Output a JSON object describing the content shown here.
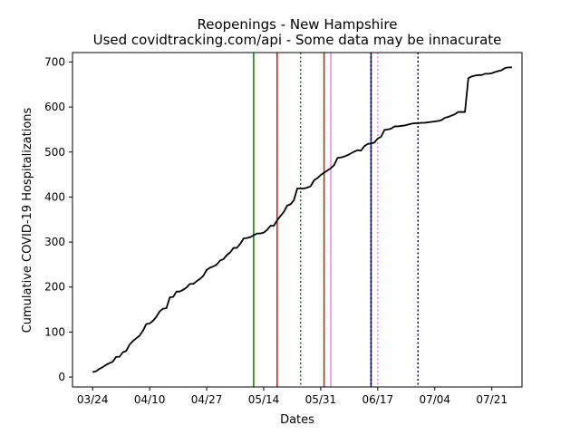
{
  "chart_data": {
    "type": "line",
    "title": "Reopenings - New Hampshire",
    "subtitle": "Used covidtracking.com/api - Some data may be innacurate",
    "xlabel": "Dates",
    "ylabel": "Cumulative COVID-19 Hospitalizations",
    "x_tick_labels": [
      "03/24",
      "04/10",
      "04/27",
      "05/14",
      "05/31",
      "06/17",
      "07/04",
      "07/21"
    ],
    "x_tick_dates": [
      "2020-03-24",
      "2020-04-10",
      "2020-04-27",
      "2020-05-14",
      "2020-05-31",
      "2020-06-17",
      "2020-07-04",
      "2020-07-21"
    ],
    "xlim": [
      "2020-03-18",
      "2020-07-30"
    ],
    "ylim": [
      -22,
      721
    ],
    "y_ticks": [
      0,
      100,
      200,
      300,
      400,
      500,
      600,
      700
    ],
    "grid": false,
    "series": [
      {
        "color": "#000000",
        "points": [
          [
            "2020-03-24",
            11
          ],
          [
            "2020-03-25",
            13
          ],
          [
            "2020-03-26",
            18
          ],
          [
            "2020-03-27",
            22
          ],
          [
            "2020-03-28",
            27
          ],
          [
            "2020-03-29",
            31
          ],
          [
            "2020-03-30",
            34
          ],
          [
            "2020-03-31",
            45
          ],
          [
            "2020-04-01",
            45
          ],
          [
            "2020-04-02",
            55
          ],
          [
            "2020-04-03",
            58
          ],
          [
            "2020-04-04",
            72
          ],
          [
            "2020-04-05",
            80
          ],
          [
            "2020-04-06",
            86
          ],
          [
            "2020-04-07",
            92
          ],
          [
            "2020-04-08",
            103
          ],
          [
            "2020-04-09",
            118
          ],
          [
            "2020-04-10",
            119
          ],
          [
            "2020-04-11",
            125
          ],
          [
            "2020-04-12",
            134
          ],
          [
            "2020-04-13",
            146
          ],
          [
            "2020-04-14",
            152
          ],
          [
            "2020-04-15",
            153
          ],
          [
            "2020-04-16",
            177
          ],
          [
            "2020-04-17",
            178
          ],
          [
            "2020-04-18",
            190
          ],
          [
            "2020-04-19",
            190
          ],
          [
            "2020-04-20",
            194
          ],
          [
            "2020-04-21",
            199
          ],
          [
            "2020-04-22",
            207
          ],
          [
            "2020-04-23",
            207
          ],
          [
            "2020-04-24",
            213
          ],
          [
            "2020-04-25",
            218
          ],
          [
            "2020-04-26",
            225
          ],
          [
            "2020-04-27",
            238
          ],
          [
            "2020-04-28",
            243
          ],
          [
            "2020-04-29",
            246
          ],
          [
            "2020-04-30",
            250
          ],
          [
            "2020-05-01",
            259
          ],
          [
            "2020-05-02",
            262
          ],
          [
            "2020-05-03",
            271
          ],
          [
            "2020-05-04",
            277
          ],
          [
            "2020-05-05",
            287
          ],
          [
            "2020-05-06",
            287
          ],
          [
            "2020-05-07",
            296
          ],
          [
            "2020-05-08",
            308
          ],
          [
            "2020-05-09",
            309
          ],
          [
            "2020-05-10",
            311
          ],
          [
            "2020-05-11",
            315
          ],
          [
            "2020-05-12",
            319
          ],
          [
            "2020-05-13",
            319
          ],
          [
            "2020-05-14",
            321
          ],
          [
            "2020-05-15",
            327
          ],
          [
            "2020-05-16",
            336
          ],
          [
            "2020-05-17",
            336
          ],
          [
            "2020-05-18",
            348
          ],
          [
            "2020-05-19",
            358
          ],
          [
            "2020-05-20",
            367
          ],
          [
            "2020-05-21",
            381
          ],
          [
            "2020-05-22",
            384
          ],
          [
            "2020-05-23",
            393
          ],
          [
            "2020-05-24",
            419
          ],
          [
            "2020-05-25",
            419
          ],
          [
            "2020-05-26",
            419
          ],
          [
            "2020-05-27",
            421
          ],
          [
            "2020-05-28",
            424
          ],
          [
            "2020-05-29",
            437
          ],
          [
            "2020-05-30",
            442
          ],
          [
            "2020-05-31",
            449
          ],
          [
            "2020-06-01",
            454
          ],
          [
            "2020-06-02",
            459
          ],
          [
            "2020-06-03",
            464
          ],
          [
            "2020-06-04",
            471
          ],
          [
            "2020-06-05",
            487
          ],
          [
            "2020-06-06",
            488
          ],
          [
            "2020-06-07",
            490
          ],
          [
            "2020-06-08",
            493
          ],
          [
            "2020-06-09",
            497
          ],
          [
            "2020-06-10",
            501
          ],
          [
            "2020-06-11",
            504
          ],
          [
            "2020-06-12",
            503
          ],
          [
            "2020-06-13",
            513
          ],
          [
            "2020-06-14",
            518
          ],
          [
            "2020-06-15",
            519
          ],
          [
            "2020-06-16",
            521
          ],
          [
            "2020-06-17",
            530
          ],
          [
            "2020-06-18",
            534
          ],
          [
            "2020-06-19",
            549
          ],
          [
            "2020-06-20",
            550
          ],
          [
            "2020-06-21",
            552
          ],
          [
            "2020-06-22",
            557
          ],
          [
            "2020-06-23",
            557
          ],
          [
            "2020-06-24",
            558
          ],
          [
            "2020-06-25",
            559
          ],
          [
            "2020-06-26",
            561
          ],
          [
            "2020-06-27",
            563
          ],
          [
            "2020-06-28",
            564
          ],
          [
            "2020-06-29",
            564
          ],
          [
            "2020-06-30",
            565
          ],
          [
            "2020-07-01",
            565
          ],
          [
            "2020-07-02",
            566
          ],
          [
            "2020-07-03",
            567
          ],
          [
            "2020-07-04",
            568
          ],
          [
            "2020-07-05",
            569
          ],
          [
            "2020-07-06",
            571
          ],
          [
            "2020-07-07",
            576
          ],
          [
            "2020-07-08",
            578
          ],
          [
            "2020-07-09",
            581
          ],
          [
            "2020-07-10",
            584
          ],
          [
            "2020-07-11",
            589
          ],
          [
            "2020-07-12",
            589
          ],
          [
            "2020-07-13",
            589
          ],
          [
            "2020-07-14",
            664
          ],
          [
            "2020-07-15",
            668
          ],
          [
            "2020-07-16",
            670
          ],
          [
            "2020-07-17",
            671
          ],
          [
            "2020-07-18",
            671
          ],
          [
            "2020-07-19",
            674
          ],
          [
            "2020-07-20",
            674
          ],
          [
            "2020-07-21",
            675
          ],
          [
            "2020-07-22",
            678
          ],
          [
            "2020-07-23",
            680
          ],
          [
            "2020-07-24",
            682
          ],
          [
            "2020-07-25",
            687
          ],
          [
            "2020-07-26",
            688
          ],
          [
            "2020-07-27",
            688
          ]
        ]
      }
    ],
    "reference_lines": [
      {
        "date": "2020-05-11",
        "color": "#008000",
        "style": "solid"
      },
      {
        "date": "2020-05-18",
        "color": "#ff0000",
        "style": "solid"
      },
      {
        "date": "2020-05-25",
        "color": "#008000",
        "style": "dotted"
      },
      {
        "date": "2020-06-01",
        "color": "#ff0000",
        "style": "solid"
      },
      {
        "date": "2020-06-01",
        "color": "#228b22",
        "style": "dotted"
      },
      {
        "date": "2020-06-03",
        "color": "#ee82ee",
        "style": "solid"
      },
      {
        "date": "2020-06-15",
        "color": "#0000ff",
        "style": "solid"
      },
      {
        "date": "2020-06-15",
        "color": "#000000",
        "style": "dotted"
      },
      {
        "date": "2020-06-17",
        "color": "#ee82ee",
        "style": "dotted"
      },
      {
        "date": "2020-06-29",
        "color": "#00008b",
        "style": "dotted"
      }
    ]
  }
}
